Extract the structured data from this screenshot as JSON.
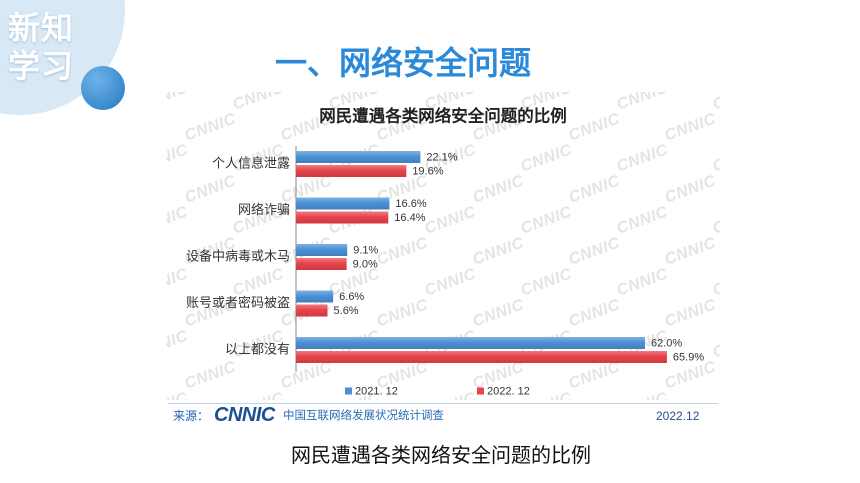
{
  "slide": {
    "badge": {
      "line1": "新知",
      "line2": "学习"
    },
    "title": "一、网络安全问题",
    "caption": "网民遭遇各类网络安全问题的比例",
    "colors": {
      "title": "#2b89d9",
      "badge_circle": "#d8e9f5",
      "badge_dot": "#3a8fd4"
    }
  },
  "chart_data": {
    "type": "bar",
    "orientation": "horizontal",
    "title": "网民遭遇各类网络安全问题的比例",
    "xlabel": "",
    "ylabel": "",
    "categories": [
      "个人信息泄露",
      "网络诈骗",
      "设备中病毒或木马",
      "账号或者密码被盗",
      "以上都没有"
    ],
    "series": [
      {
        "name": "2021. 12",
        "values": [
          22.1,
          16.6,
          9.1,
          6.6,
          62.0
        ],
        "color": "#4b90d6"
      },
      {
        "name": "2022. 12",
        "values": [
          19.6,
          16.4,
          9.0,
          5.6,
          65.9
        ],
        "color": "#e8434b"
      }
    ],
    "unit": "%",
    "xlim": [
      0,
      70
    ],
    "grid": false,
    "legend": "bottom"
  },
  "source": {
    "label": "来源：",
    "logo_text": "CNNIC",
    "organization": "中国互联网络发展状况统计调查",
    "date": "2022.12"
  },
  "watermark": {
    "text": "CNNIC"
  }
}
